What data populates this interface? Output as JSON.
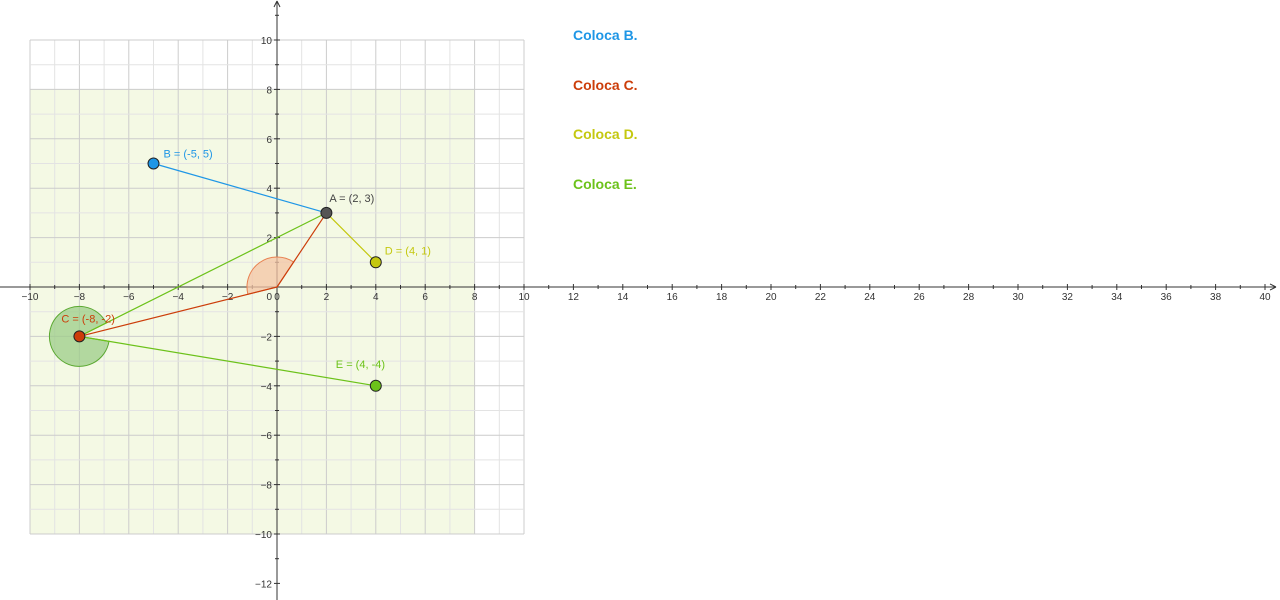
{
  "instructions": [
    {
      "text": "Coloca B.",
      "color": "#1e96e6"
    },
    {
      "text": "Coloca C.",
      "color": "#cc3d0a"
    },
    {
      "text": "Coloca D.",
      "color": "#c4c80f"
    },
    {
      "text": "Coloca E.",
      "color": "#6cc21a"
    }
  ],
  "chart_data": {
    "type": "scatter",
    "xlim": [
      -11,
      40.5
    ],
    "ylim": [
      -12.5,
      11.5
    ],
    "x_ticks": [
      -10,
      -8,
      -6,
      -4,
      -2,
      0,
      2,
      4,
      6,
      8,
      10,
      12,
      14,
      16,
      18,
      20,
      22,
      24,
      26,
      28,
      30,
      32,
      34,
      36,
      38,
      40
    ],
    "y_ticks": [
      -12,
      -10,
      -8,
      -6,
      -4,
      -2,
      2,
      4,
      6,
      8,
      10
    ],
    "grid": true,
    "grid_region": {
      "x": [
        -10,
        10
      ],
      "y": [
        -10,
        10
      ]
    },
    "shaded_region": {
      "x": [
        -10,
        8
      ],
      "y": [
        -10,
        8
      ],
      "color": "#f4f9e4"
    },
    "points": [
      {
        "name": "A",
        "label": "A = (2, 3)",
        "x": 2,
        "y": 3,
        "color": "#555555",
        "label_color": "#444444"
      },
      {
        "name": "B",
        "label": "B = (-5, 5)",
        "x": -5,
        "y": 5,
        "color": "#1e96e6",
        "label_color": "#1e96e6"
      },
      {
        "name": "C",
        "label": "C = (-8, -2)",
        "x": -8,
        "y": -2,
        "color": "#cc3d0a",
        "label_color": "#cc3d0a"
      },
      {
        "name": "D",
        "label": "D = (4, 1)",
        "x": 4,
        "y": 1,
        "color": "#c4c80f",
        "label_color": "#c4c80f"
      },
      {
        "name": "E",
        "label": "E = (4, -4)",
        "x": 4,
        "y": -4,
        "color": "#6cc21a",
        "label_color": "#6cc21a"
      }
    ],
    "segments": [
      {
        "from": "B",
        "to": "A",
        "color": "#1e96e6"
      },
      {
        "from": "A",
        "to": "D",
        "color": "#c4c80f"
      },
      {
        "from": "C",
        "to": "A",
        "color": "#6cc21a"
      },
      {
        "from": "C",
        "to": "E",
        "color": "#6cc21a"
      },
      {
        "from": "C",
        "to": "O",
        "color": "#cc3d0a"
      },
      {
        "from": "O",
        "to": "A",
        "color": "#cc3d0a"
      }
    ],
    "angles": [
      {
        "vertex": "O",
        "arm1": "C",
        "arm2": "A",
        "color": "#e88050",
        "fill": "#f4c4a4"
      },
      {
        "vertex": "C",
        "arm1": "E",
        "arm2": "A",
        "color": "#5aa830",
        "fill": "#9ccc88"
      }
    ],
    "origin": {
      "x": 0,
      "y": 0
    }
  }
}
